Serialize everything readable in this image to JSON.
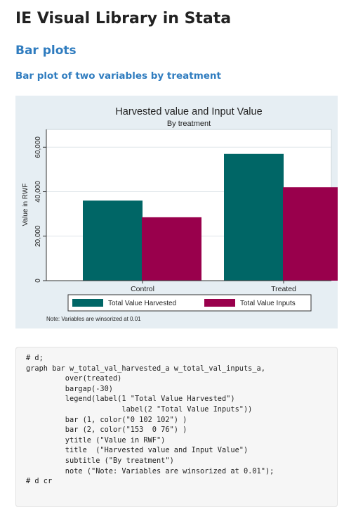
{
  "page": {
    "title": "IE Visual Library in Stata",
    "section": "Bar plots",
    "subsection": "Bar plot of two variables by treatment"
  },
  "chart_data": {
    "type": "bar",
    "title": "Harvested value and Input Value",
    "subtitle": "By treatment",
    "ylabel": "Value in RWF",
    "categories": [
      "Control",
      "Treated"
    ],
    "series": [
      {
        "name": "Total Value Harvested",
        "values": [
          36000,
          57000
        ],
        "color": "#006666"
      },
      {
        "name": "Total Value Inputs",
        "values": [
          28500,
          42000
        ],
        "color": "#99004c"
      }
    ],
    "ylim": [
      0,
      60000
    ],
    "yticks": [
      0,
      20000,
      40000,
      60000
    ],
    "ytick_labels": [
      "0",
      "20,000",
      "40,000",
      "60,000"
    ],
    "grid": true,
    "legend_position": "bottom",
    "note": "Note: Variables are winsorized at 0.01"
  },
  "code_block": {
    "lines": [
      "# d;",
      "graph bar w_total_val_harvested_a w_total_val_inputs_a,",
      "         over(treated)",
      "         bargap(-30)",
      "         legend(label(1 \"Total Value Harvested\")",
      "                      label(2 \"Total Value Inputs\"))",
      "         bar (1, color(\"0 102 102\") )",
      "         bar (2, color(\"153  0 76\") )",
      "         ytitle (\"Value in RWF\")",
      "         title  (\"Harvested value and Input Value\")",
      "         subtitle (\"By treatment\")",
      "         note (\"Note: Variables are winsorized at 0.01\");",
      "# d cr"
    ]
  }
}
